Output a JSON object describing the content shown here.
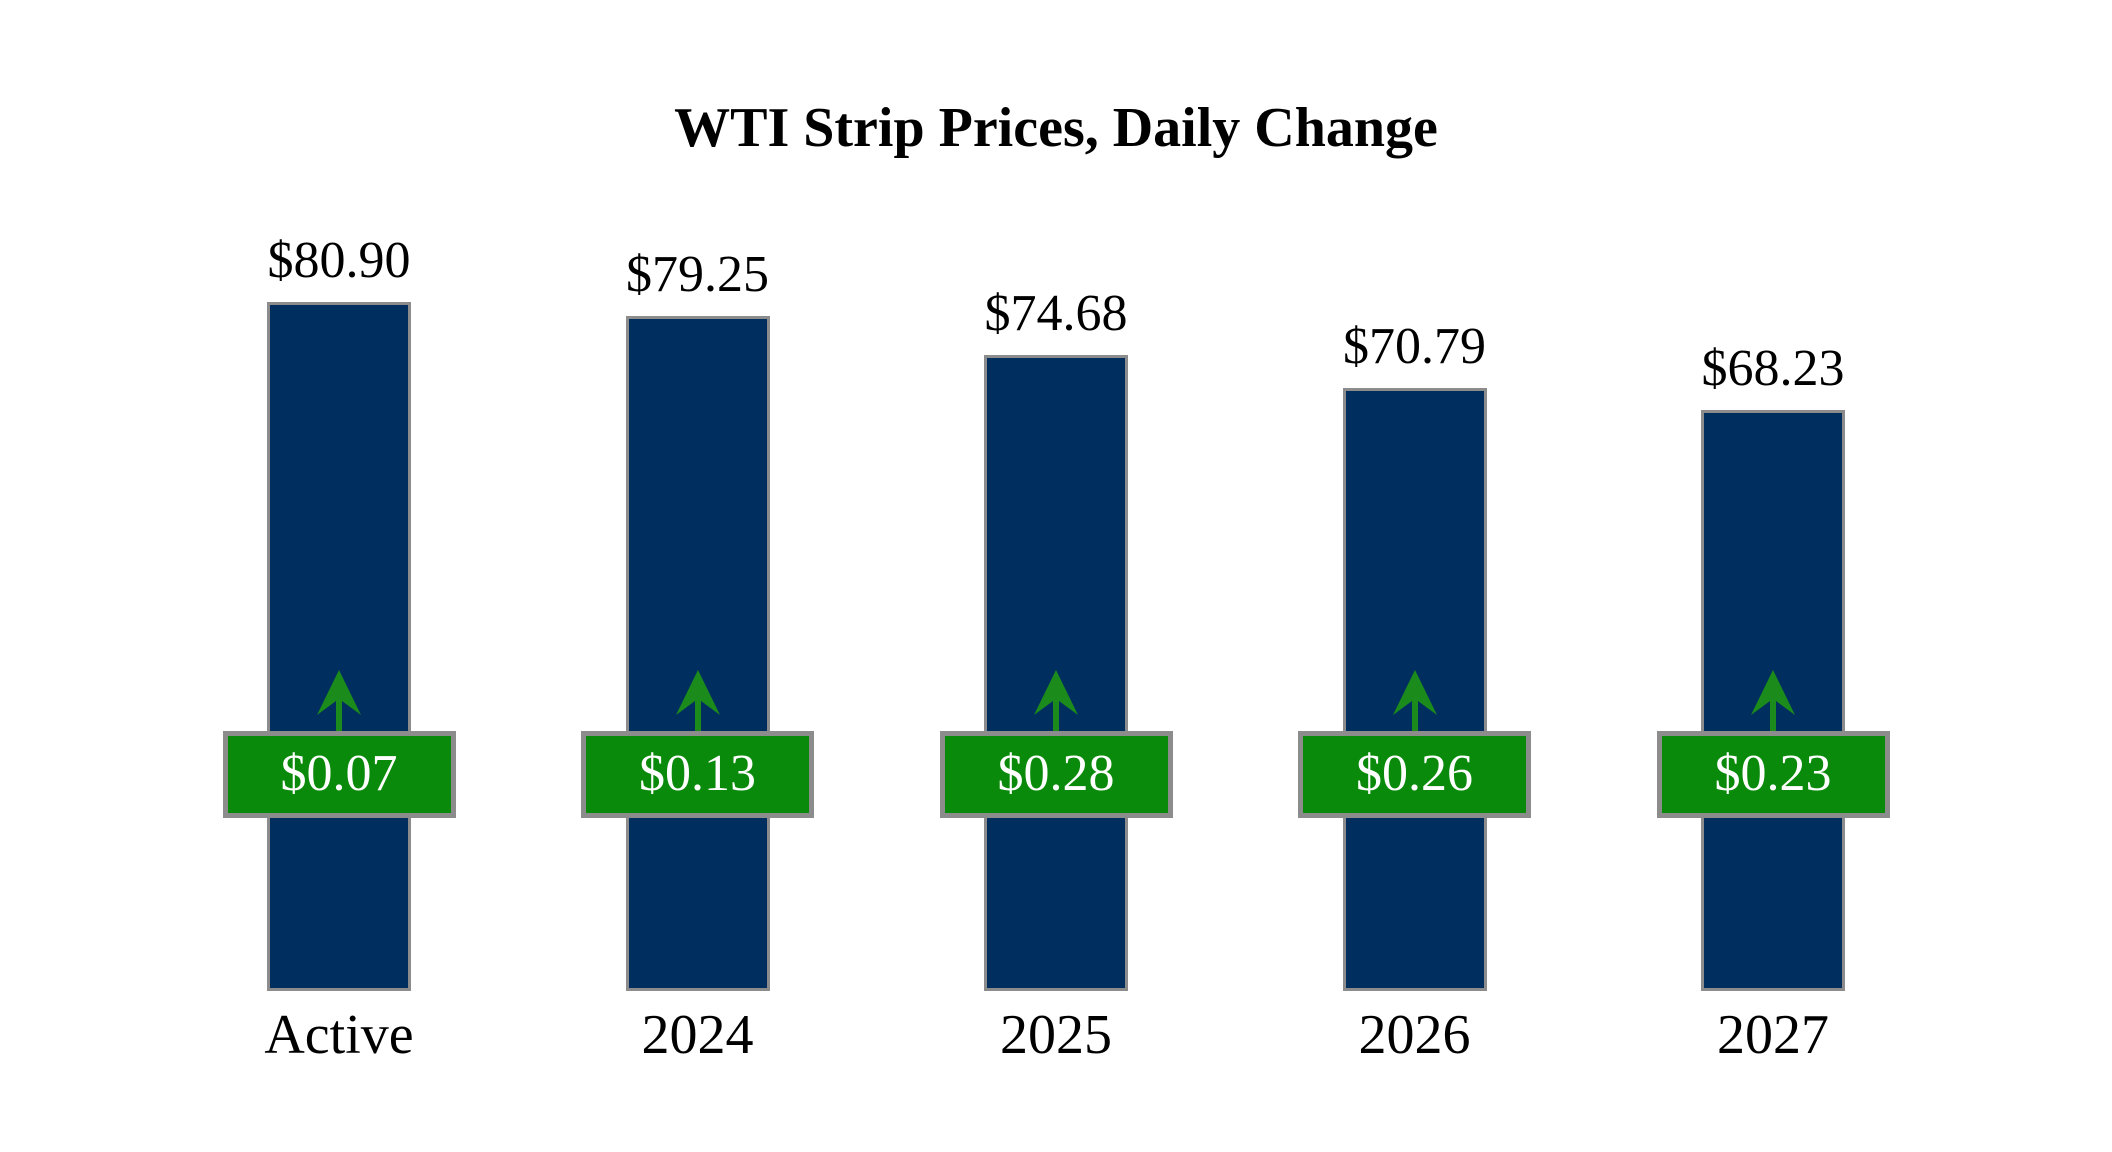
{
  "chart_data": {
    "type": "bar",
    "title": "WTI Strip Prices, Daily Change",
    "categories": [
      "Active",
      "2024",
      "2025",
      "2026",
      "2027"
    ],
    "series": [
      {
        "name": "Strip Price",
        "values": [
          80.9,
          79.25,
          74.68,
          70.79,
          68.23
        ],
        "labels": [
          "$80.90",
          "$79.25",
          "$74.68",
          "$70.79",
          "$68.23"
        ]
      },
      {
        "name": "Daily Change",
        "direction": "up",
        "values": [
          0.07,
          0.13,
          0.28,
          0.26,
          0.23
        ],
        "labels": [
          "$0.07",
          "$0.13",
          "$0.28",
          "$0.26",
          "$0.23"
        ]
      }
    ],
    "ylim": [
      0,
      85
    ],
    "grid": false,
    "legend": "none",
    "colors": {
      "bar_fill": "#002f5f",
      "bar_border": "#8c8c8c",
      "badge_fill": "#0a8a0a",
      "badge_border": "#8c8c8c",
      "badge_text": "#ffffff",
      "arrow_green": "#1b8c1b",
      "label_text": "#000000",
      "background": "#ffffff"
    }
  }
}
